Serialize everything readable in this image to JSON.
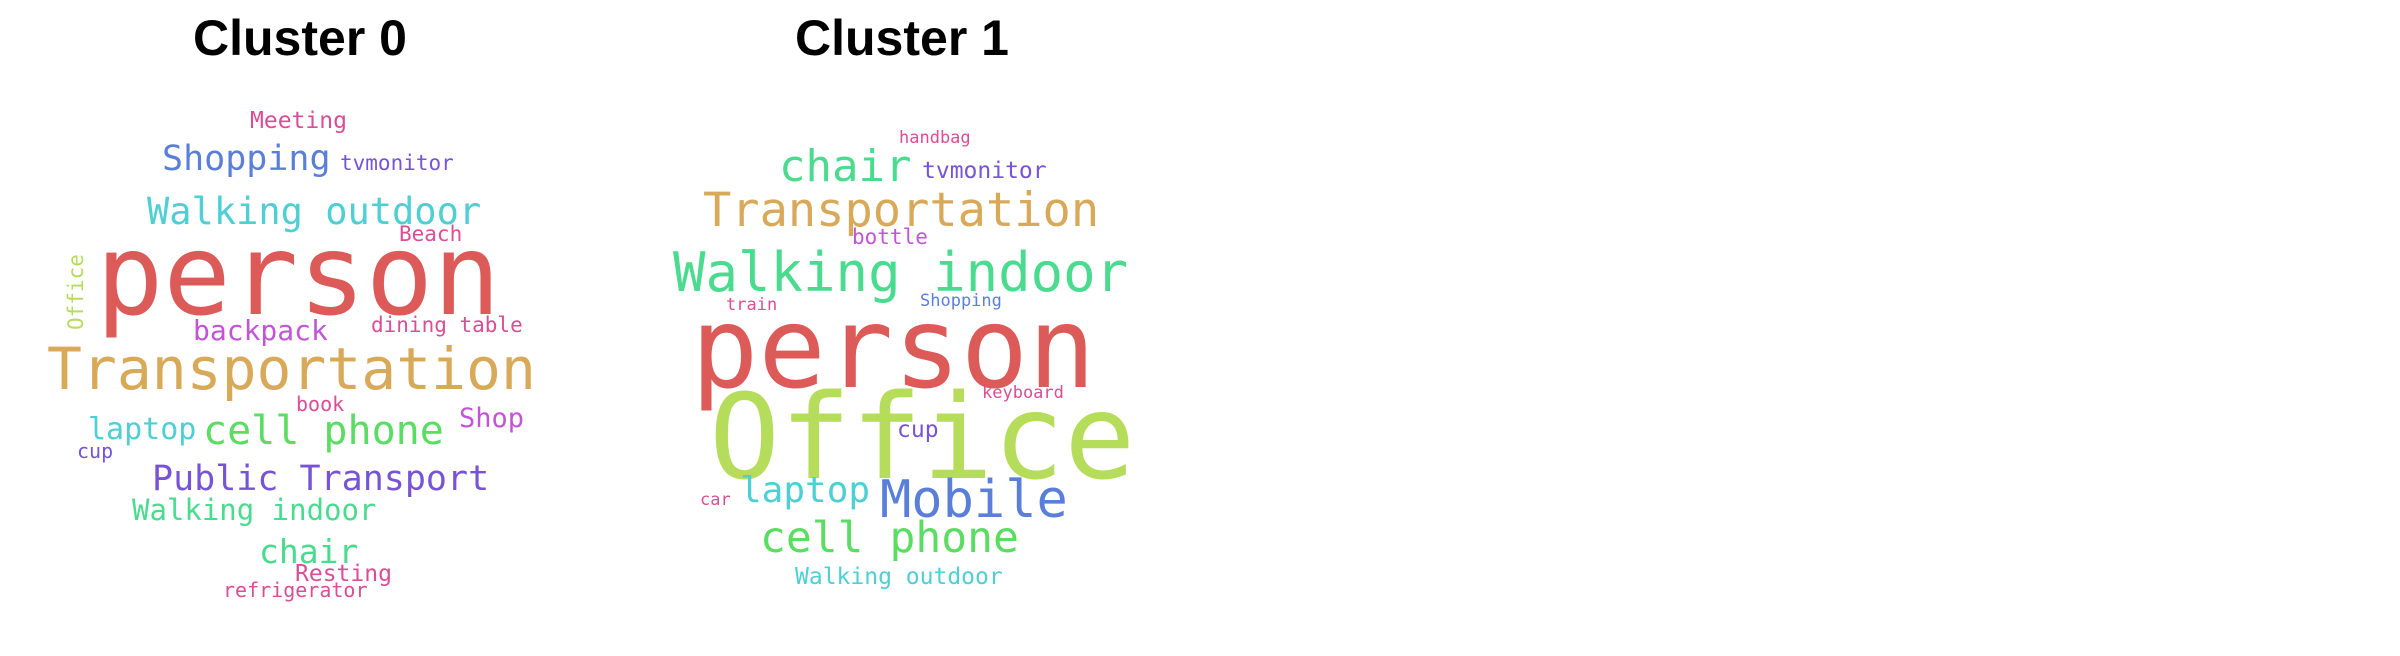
{
  "panels": [
    {
      "title": "Cluster 0",
      "words": [
        {
          "text": "person",
          "color": "#dc5b59"
        },
        {
          "text": "Transportation",
          "color": "#d9a95a"
        },
        {
          "text": "Walking outdoor",
          "color": "#4dcfd4"
        },
        {
          "text": "Shopping",
          "color": "#5a7fd9"
        },
        {
          "text": "cell phone",
          "color": "#5bdc62"
        },
        {
          "text": "Public Transport",
          "color": "#7754d6"
        },
        {
          "text": "Walking indoor",
          "color": "#4bdb8f"
        },
        {
          "text": "chair",
          "color": "#4bdb8f"
        },
        {
          "text": "laptop",
          "color": "#4dcfd4"
        },
        {
          "text": "backpack",
          "color": "#c255d6"
        },
        {
          "text": "Shop",
          "color": "#c255d6"
        },
        {
          "text": "Meeting",
          "color": "#db4d96"
        },
        {
          "text": "tvmonitor",
          "color": "#7754d6"
        },
        {
          "text": "Beach",
          "color": "#db4d96"
        },
        {
          "text": "dining table",
          "color": "#db4d96"
        },
        {
          "text": "Office",
          "color": "#b5dc5b"
        },
        {
          "text": "book",
          "color": "#db4d96"
        },
        {
          "text": "cup",
          "color": "#7754d6"
        },
        {
          "text": "Resting",
          "color": "#db4d96"
        },
        {
          "text": "refrigerator",
          "color": "#db4d96"
        }
      ]
    },
    {
      "title": "Cluster 1",
      "words": [
        {
          "text": "person",
          "color": "#dc5b59"
        },
        {
          "text": "Office",
          "color": "#b5dc5b"
        },
        {
          "text": "Walking indoor",
          "color": "#4bdb8f"
        },
        {
          "text": "Transportation",
          "color": "#d9a95a"
        },
        {
          "text": "Mobile",
          "color": "#5a7fd9"
        },
        {
          "text": "cell phone",
          "color": "#5bdc62"
        },
        {
          "text": "chair",
          "color": "#4bdb8f"
        },
        {
          "text": "laptop",
          "color": "#4dcfd4"
        },
        {
          "text": "tvmonitor",
          "color": "#7754d6"
        },
        {
          "text": "Walking outdoor",
          "color": "#4dcfd4"
        },
        {
          "text": "bottle",
          "color": "#c255d6"
        },
        {
          "text": "cup",
          "color": "#7754d6"
        },
        {
          "text": "handbag",
          "color": "#db4d96"
        },
        {
          "text": "Shopping",
          "color": "#5a7fd9"
        },
        {
          "text": "train",
          "color": "#db4d96"
        },
        {
          "text": "keyboard",
          "color": "#db4d96"
        },
        {
          "text": "car",
          "color": "#db4d96"
        }
      ]
    }
  ]
}
